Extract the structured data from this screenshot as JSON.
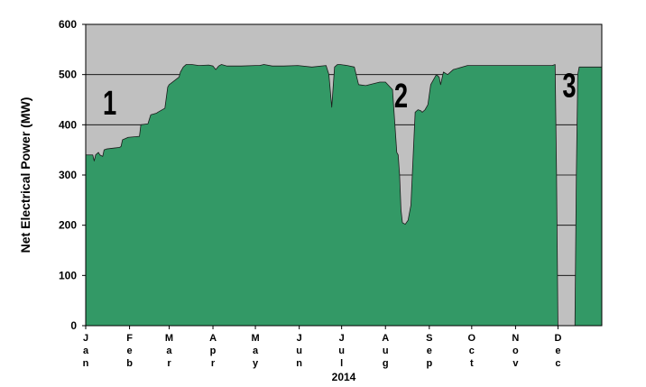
{
  "chart_data": {
    "type": "area",
    "title": "",
    "xlabel": "2014",
    "ylabel": "Net Electrical Power (MW)",
    "ylim": [
      0,
      600
    ],
    "yticks": [
      0,
      100,
      200,
      300,
      400,
      500,
      600
    ],
    "xlim": [
      0,
      365
    ],
    "grid": true,
    "legend": "none",
    "month_labels": [
      "Jan",
      "Feb",
      "Mar",
      "Apr",
      "May",
      "Jun",
      "Jul",
      "Aug",
      "Sep",
      "Oct",
      "Nov",
      "Dec"
    ],
    "month_starts": [
      0,
      31,
      59,
      90,
      120,
      151,
      181,
      212,
      243,
      273,
      304,
      334
    ],
    "annotations": [
      {
        "text": "1",
        "x": 17,
        "y": 420
      },
      {
        "text": "2",
        "x": 223,
        "y": 435
      },
      {
        "text": "3",
        "x": 342,
        "y": 455
      }
    ],
    "colors": {
      "fill": "#339966",
      "stroke": "#1a1a1a",
      "plot_background": "#c0c0c0",
      "grid": "#000000"
    },
    "series": [
      {
        "x": [
          0,
          5,
          6,
          7,
          9,
          10,
          12,
          13,
          15,
          24,
          25,
          26,
          30,
          38,
          39,
          44,
          46,
          50,
          51,
          56,
          58,
          59,
          60,
          66,
          67,
          69,
          71,
          75,
          80,
          87,
          90,
          92,
          94,
          96,
          100,
          110,
          120,
          123,
          126,
          132,
          140,
          150,
          160,
          170,
          172,
          174,
          176,
          178,
          180,
          185,
          190,
          193,
          198,
          208,
          212,
          217,
          220,
          221,
          222,
          223,
          224,
          226,
          228,
          230,
          233,
          235,
          237,
          238,
          240,
          242,
          244,
          248,
          250,
          251,
          253,
          256,
          260,
          270,
          280,
          290,
          300,
          310,
          320,
          330,
          332,
          333,
          334,
          335,
          336,
          337,
          340,
          343,
          346,
          347,
          348,
          349,
          350,
          355,
          360,
          365
        ],
        "y": [
          340,
          340,
          328,
          340,
          345,
          340,
          337,
          350,
          352,
          355,
          357,
          370,
          375,
          377,
          400,
          402,
          420,
          423,
          425,
          433,
          475,
          480,
          482,
          495,
          505,
          515,
          520,
          520,
          518,
          519,
          517,
          510,
          517,
          520,
          517,
          517,
          518,
          518,
          520,
          517,
          517,
          518,
          515,
          518,
          500,
          435,
          515,
          520,
          520,
          518,
          515,
          480,
          478,
          485,
          485,
          470,
          345,
          340,
          300,
          230,
          205,
          202,
          210,
          240,
          425,
          430,
          428,
          425,
          430,
          440,
          480,
          500,
          495,
          480,
          505,
          500,
          510,
          518,
          518,
          518,
          518,
          518,
          518,
          518,
          520,
          300,
          0,
          0,
          0,
          0,
          0,
          0,
          0,
          300,
          500,
          515,
          515,
          515,
          515,
          515
        ]
      }
    ]
  }
}
